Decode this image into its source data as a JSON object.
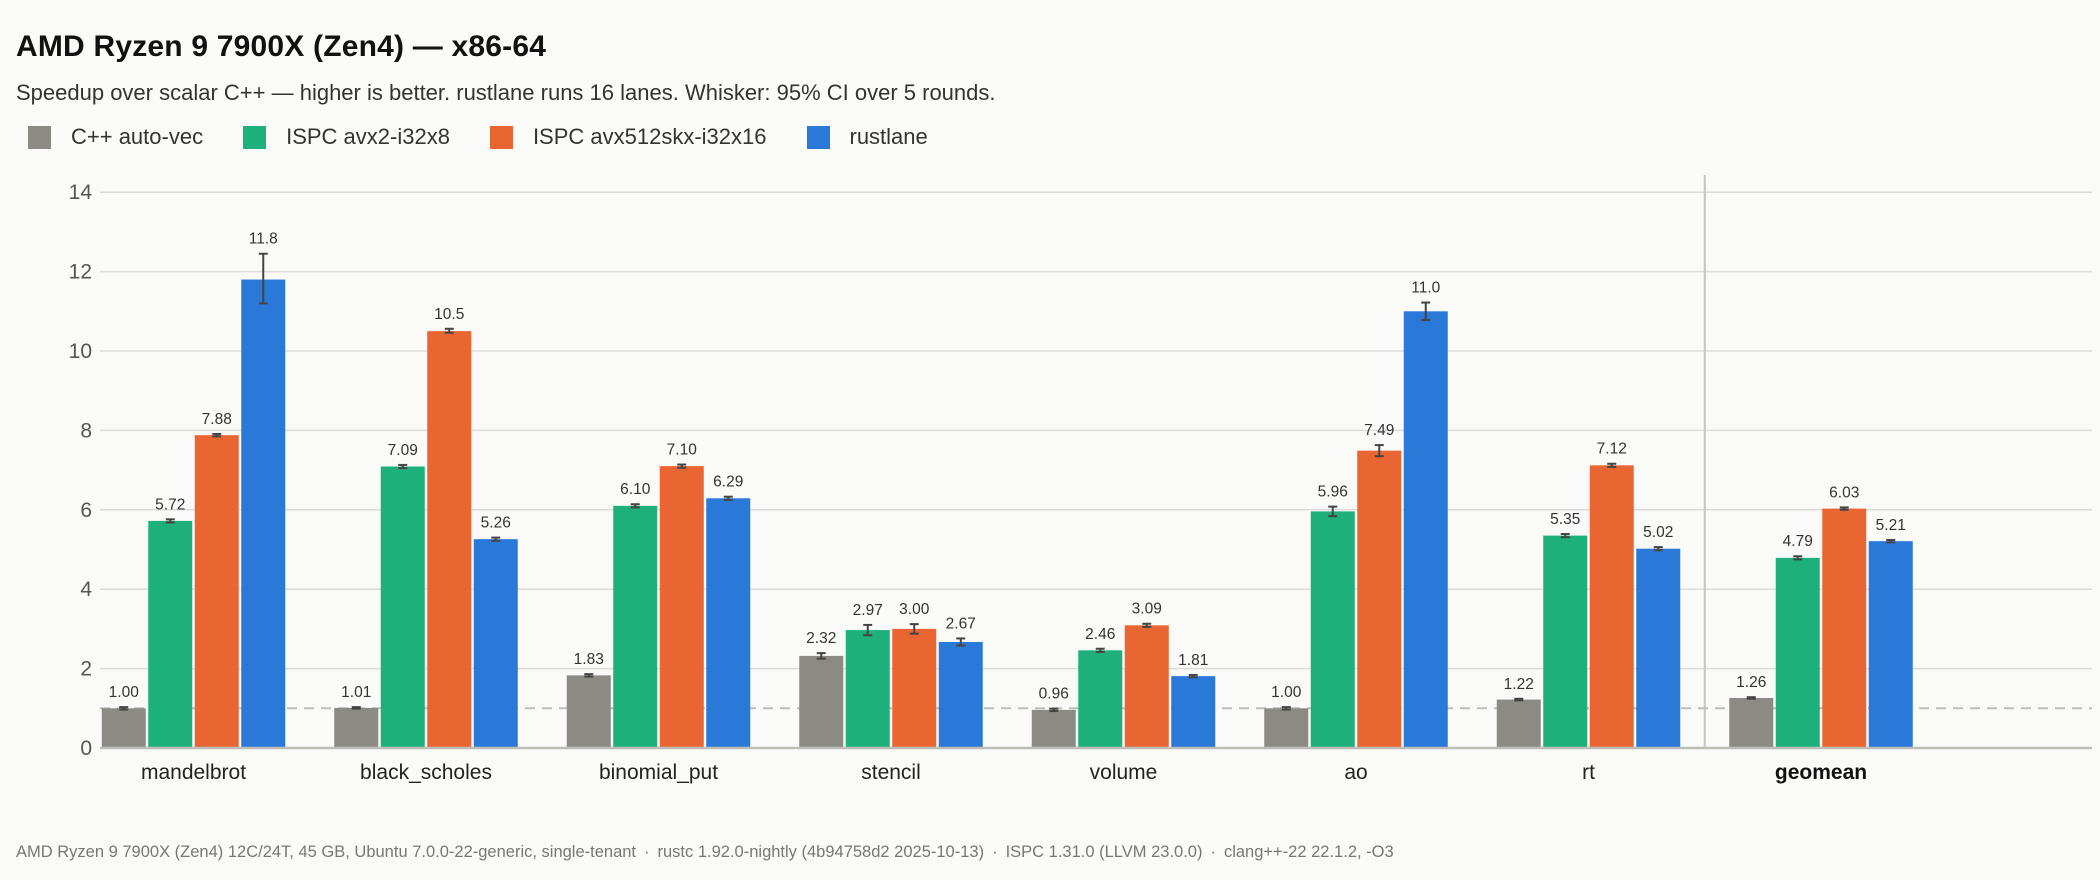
{
  "title": "AMD Ryzen 9 7900X (Zen4) — x86-64",
  "subtitle": "Speedup over scalar C++ — higher is better.  rustlane runs 16 lanes.  Whisker: 95% CI over 5 rounds.",
  "footer": {
    "parts": [
      "AMD Ryzen 9 7900X (Zen4) 12C/24T, 45 GB, Ubuntu 7.0.0-22-generic, single-tenant",
      "rustc 1.92.0-nightly (4b94758d2 2025-10-13)",
      "ISPC 1.31.0 (LLVM 23.0.0)",
      "clang++-22 22.1.2, -O3"
    ],
    "separator": "·"
  },
  "colors": {
    "cpp": "#8b8a84",
    "ispc_avx2": "#1db07a",
    "ispc_avx512": "#e96531",
    "rustlane": "#2a78d8",
    "grid": "#dcdcd8",
    "reference_line": "#bdbdbd"
  },
  "chart_data": {
    "type": "bar",
    "categories": [
      "mandelbrot",
      "black_scholes",
      "binomial_put",
      "stencil",
      "volume",
      "ao",
      "rt",
      "geomean"
    ],
    "emphasized_category": "geomean",
    "series": [
      {
        "name": "C++ auto-vec",
        "color_key": "cpp",
        "values": [
          1.0,
          1.01,
          1.83,
          2.32,
          0.96,
          1.0,
          1.22,
          1.26
        ],
        "labels": [
          "1.00",
          "1.01",
          "1.83",
          "2.32",
          "0.96",
          "1.00",
          "1.22",
          "1.26"
        ],
        "ci": [
          [
            0.97,
            1.03
          ],
          [
            0.99,
            1.03
          ],
          [
            1.8,
            1.86
          ],
          [
            2.25,
            2.39
          ],
          [
            0.93,
            0.99
          ],
          [
            0.97,
            1.03
          ],
          [
            1.2,
            1.24
          ],
          [
            1.24,
            1.28
          ]
        ]
      },
      {
        "name": "ISPC avx2-i32x8",
        "color_key": "ispc_avx2",
        "values": [
          5.72,
          7.09,
          6.1,
          2.97,
          2.46,
          5.96,
          5.35,
          4.79
        ],
        "labels": [
          "5.72",
          "7.09",
          "6.10",
          "2.97",
          "2.46",
          "5.96",
          "5.35",
          "4.79"
        ],
        "ci": [
          [
            5.68,
            5.76
          ],
          [
            7.05,
            7.13
          ],
          [
            6.06,
            6.14
          ],
          [
            2.84,
            3.1
          ],
          [
            2.42,
            2.5
          ],
          [
            5.84,
            6.08
          ],
          [
            5.31,
            5.39
          ],
          [
            4.75,
            4.83
          ]
        ]
      },
      {
        "name": "ISPC avx512skx-i32x16",
        "color_key": "ispc_avx512",
        "values": [
          7.88,
          10.5,
          7.1,
          3.0,
          3.09,
          7.49,
          7.12,
          6.03
        ],
        "labels": [
          "7.88",
          "10.5",
          "7.10",
          "3.00",
          "3.09",
          "7.49",
          "7.12",
          "6.03"
        ],
        "ci": [
          [
            7.85,
            7.91
          ],
          [
            10.46,
            10.56
          ],
          [
            7.06,
            7.14
          ],
          [
            2.88,
            3.12
          ],
          [
            3.05,
            3.13
          ],
          [
            7.35,
            7.63
          ],
          [
            7.08,
            7.16
          ],
          [
            6.0,
            6.06
          ]
        ]
      },
      {
        "name": "rustlane",
        "color_key": "rustlane",
        "values": [
          11.8,
          5.26,
          6.29,
          2.67,
          1.81,
          11.0,
          5.02,
          5.21
        ],
        "labels": [
          "11.8",
          "5.26",
          "6.29",
          "2.67",
          "1.81",
          "11.0",
          "5.02",
          "5.21"
        ],
        "ci": [
          [
            11.2,
            12.45
          ],
          [
            5.22,
            5.3
          ],
          [
            6.25,
            6.33
          ],
          [
            2.58,
            2.76
          ],
          [
            1.78,
            1.84
          ],
          [
            10.78,
            11.22
          ],
          [
            4.98,
            5.06
          ],
          [
            5.18,
            5.24
          ]
        ]
      }
    ],
    "ylim": [
      0,
      14
    ],
    "yticks": [
      0,
      2,
      4,
      6,
      8,
      10,
      12,
      14
    ],
    "reference_line": 1.0,
    "grid": true,
    "legend_position": "top-left",
    "xlabel": "",
    "ylabel": ""
  }
}
